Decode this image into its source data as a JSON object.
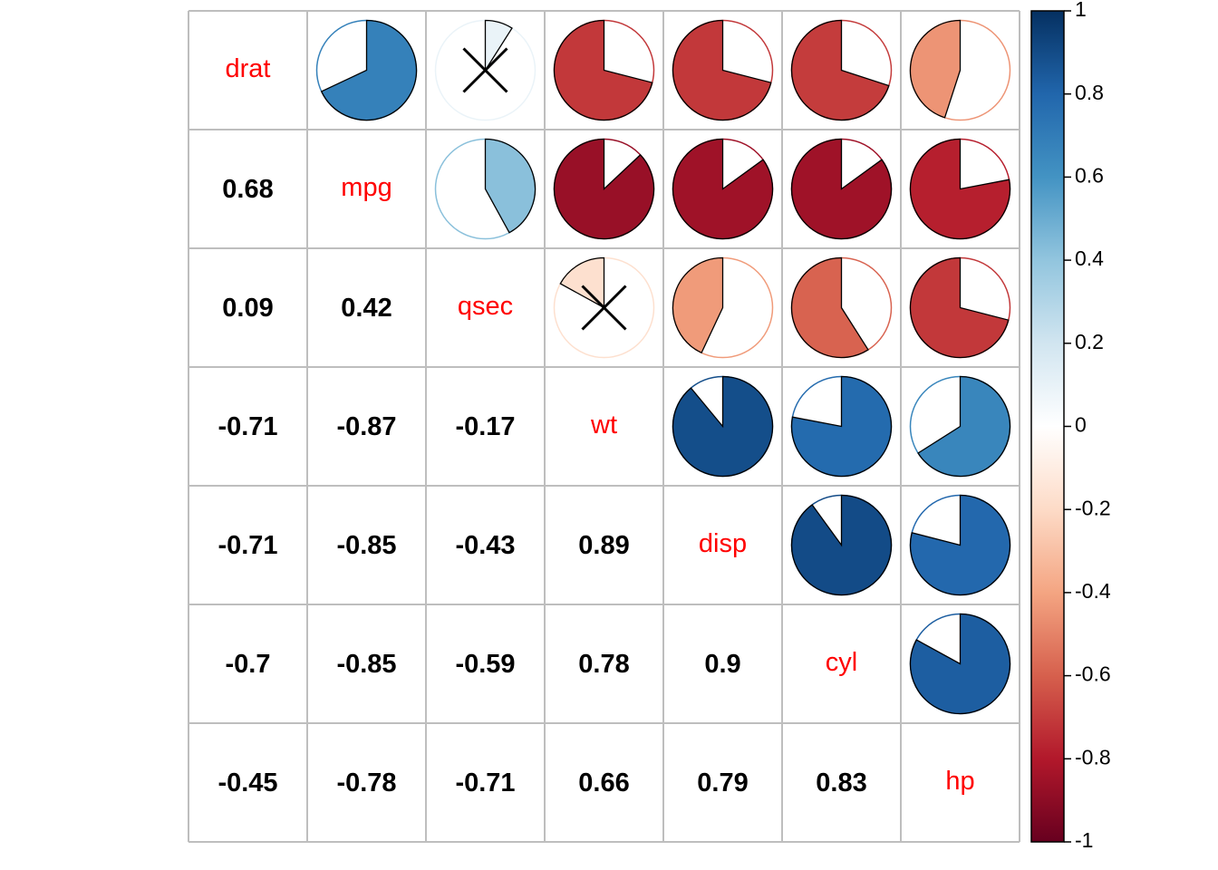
{
  "chart_data": {
    "type": "heatmap",
    "variables": [
      "drat",
      "mpg",
      "qsec",
      "wt",
      "disp",
      "cyl",
      "hp"
    ],
    "correlation_matrix": [
      [
        1,
        0.68,
        0.09,
        -0.71,
        -0.71,
        -0.7,
        -0.45
      ],
      [
        0.68,
        1,
        0.42,
        -0.87,
        -0.85,
        -0.85,
        -0.78
      ],
      [
        0.09,
        0.42,
        1,
        -0.17,
        -0.43,
        -0.59,
        -0.71
      ],
      [
        -0.71,
        -0.87,
        -0.17,
        1,
        0.89,
        0.78,
        0.66
      ],
      [
        -0.71,
        -0.85,
        -0.43,
        0.89,
        1,
        0.9,
        0.79
      ],
      [
        -0.7,
        -0.85,
        -0.59,
        0.78,
        0.9,
        1,
        0.83
      ],
      [
        -0.45,
        -0.78,
        -0.71,
        0.66,
        0.79,
        0.83,
        1
      ]
    ],
    "lower_triangle_display": "numbers",
    "upper_triangle_display": "pie",
    "insignificant_marked": [
      [
        "drat",
        "qsec"
      ],
      [
        "qsec",
        "wt"
      ]
    ],
    "insignificant_marker": "cross",
    "colorbar": {
      "range": [
        -1,
        1
      ],
      "ticks": [
        "1",
        "0.8",
        "0.6",
        "0.4",
        "0.2",
        "0",
        "-0.2",
        "-0.4",
        "-0.6",
        "-0.8",
        "-1"
      ],
      "low_color": "#67001F",
      "mid_color": "#FFFFFF",
      "high_color": "#053061"
    },
    "diagonal_label_color": "#FF0000",
    "number_color": "#000000",
    "grid": true
  }
}
